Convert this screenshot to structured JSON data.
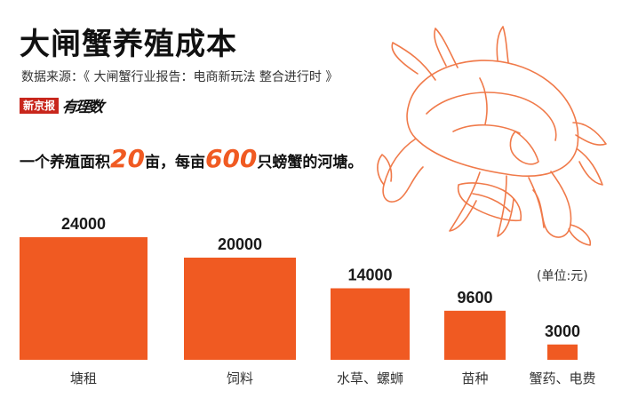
{
  "header": {
    "title": "大闸蟹养殖成本",
    "source": "数据来源：《 大闸蟹行业报告：电商新玩法 整合进行时 》",
    "brand_a": "新京报",
    "brand_b": "有理数"
  },
  "headline": {
    "part1": "一个养殖面积",
    "num1": "20",
    "part2": "亩，每亩",
    "num2": "600",
    "part3": "只螃蟹的河塘。"
  },
  "colors": {
    "bar": "#f05a22",
    "accent": "#f05a22",
    "illustration": "#f07a4a"
  },
  "illustration": "crab-illustration",
  "chart_data": {
    "type": "bar",
    "categories": [
      "塘租",
      "饲料",
      "水草、螺蛳",
      "苗种",
      "蟹药、电费"
    ],
    "values": [
      24000,
      20000,
      14000,
      9600,
      3000
    ],
    "value_labels": [
      "24000",
      "20000",
      "14000",
      "9600",
      "3000"
    ],
    "unit": "(单位:元)",
    "ylim": [
      0,
      24000
    ],
    "grid": false,
    "legend": "none"
  }
}
